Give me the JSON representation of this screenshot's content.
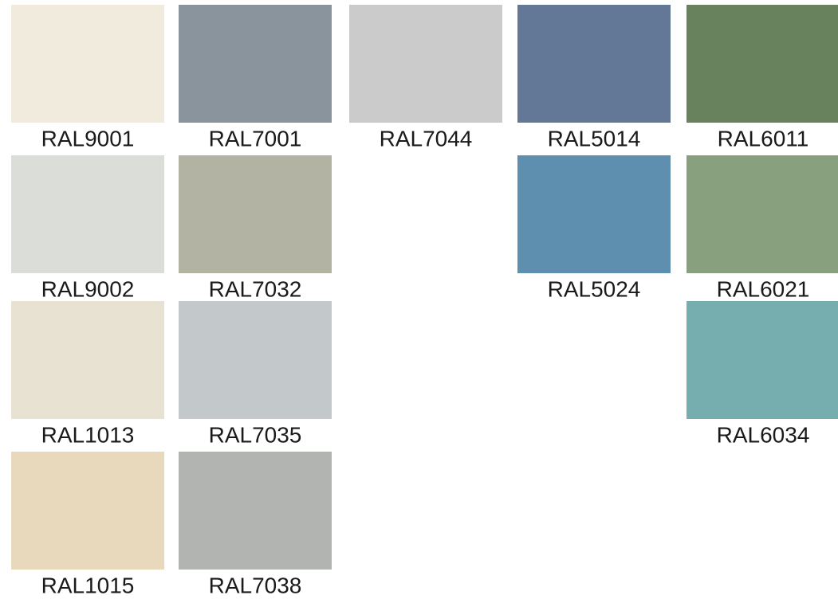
{
  "columns": [
    {
      "swatches": [
        {
          "label": "RAL9001",
          "color": "#f0ebdd"
        },
        {
          "label": "RAL9002",
          "color": "#dbddd9"
        },
        {
          "label": "RAL1013",
          "color": "#e8e2d2"
        },
        {
          "label": "RAL1015",
          "color": "#e8d9bc"
        }
      ]
    },
    {
      "swatches": [
        {
          "label": "RAL7001",
          "color": "#8a949d"
        },
        {
          "label": "RAL7032",
          "color": "#b3b3a3"
        },
        {
          "label": "RAL7035",
          "color": "#c3c8cb"
        },
        {
          "label": "RAL7038",
          "color": "#b1b4b1"
        }
      ]
    },
    {
      "swatches": [
        {
          "label": "RAL7044",
          "color": "#cbcbcb"
        }
      ]
    },
    {
      "swatches": [
        {
          "label": "RAL5014",
          "color": "#637796"
        },
        {
          "label": "RAL5024",
          "color": "#5e8fae"
        }
      ]
    },
    {
      "swatches": [
        {
          "label": "RAL6011",
          "color": "#67825d"
        },
        {
          "label": "RAL6021",
          "color": "#89a07e"
        },
        {
          "label": "RAL6034",
          "color": "#76aeb0"
        }
      ]
    }
  ]
}
